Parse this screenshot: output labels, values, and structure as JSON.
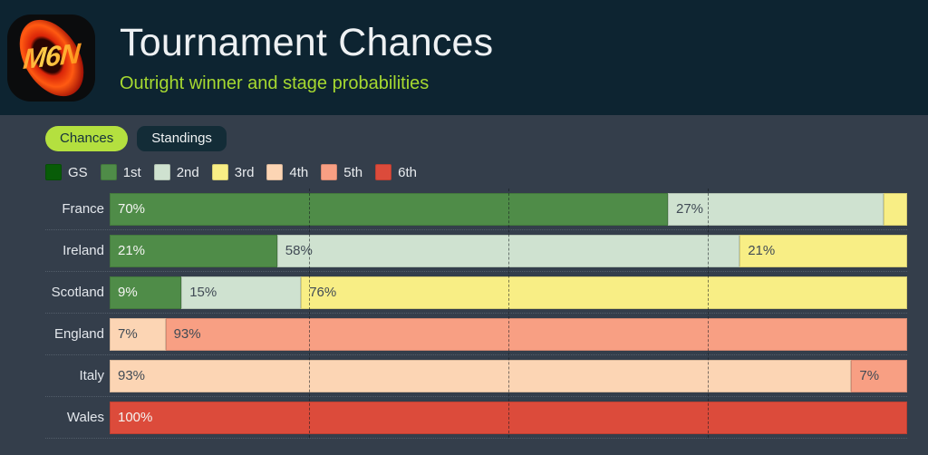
{
  "header": {
    "logo_text": "M6N",
    "title": "Tournament Chances",
    "subtitle": "Outright winner and stage probabilities"
  },
  "tabs": [
    {
      "label": "Chances",
      "active": true
    },
    {
      "label": "Standings",
      "active": false
    }
  ],
  "legend": [
    {
      "stage": "GS"
    },
    {
      "stage": "1st"
    },
    {
      "stage": "2nd"
    },
    {
      "stage": "3rd"
    },
    {
      "stage": "4th"
    },
    {
      "stage": "5th"
    },
    {
      "stage": "6th"
    }
  ],
  "colors": {
    "header_bg": "#0d2431",
    "content_bg": "#343e4b",
    "accent_green": "#a6d930",
    "tab_active_bg": "#b4e03f",
    "tab_active_text": "#15313b",
    "tab_inactive_bg": "#132c37"
  },
  "chart_data": {
    "type": "bar",
    "variant": "horizontal-stacked",
    "x_range": [
      0,
      100
    ],
    "grid_percents": [
      25,
      50,
      75
    ],
    "legend_position": "top",
    "stage_colors": {
      "GS": "#085c08",
      "1st": "#4f8c48",
      "2nd": "#cfe2d0",
      "3rd": "#f8ee85",
      "4th": "#fcd5b4",
      "5th": "#f89f83",
      "6th": "#dc4b3b"
    },
    "light_text_stages": [
      "GS",
      "1st",
      "6th"
    ],
    "categories": [
      "France",
      "Ireland",
      "Scotland",
      "England",
      "Italy",
      "Wales"
    ],
    "series": [
      {
        "name": "1st",
        "values": [
          70,
          21,
          9,
          0,
          0,
          0
        ]
      },
      {
        "name": "2nd",
        "values": [
          27,
          58,
          15,
          0,
          0,
          0
        ]
      },
      {
        "name": "3rd",
        "values": [
          3,
          21,
          76,
          0,
          0,
          0
        ]
      },
      {
        "name": "4th",
        "values": [
          0,
          0,
          0,
          7,
          93,
          0
        ]
      },
      {
        "name": "5th",
        "values": [
          0,
          0,
          0,
          93,
          7,
          0
        ]
      },
      {
        "name": "6th",
        "values": [
          0,
          0,
          0,
          0,
          0,
          100
        ]
      }
    ],
    "rows": [
      {
        "team": "France",
        "segments": [
          {
            "stage": "1st",
            "value": 70,
            "label": "70%"
          },
          {
            "stage": "2nd",
            "value": 27,
            "label": "27%"
          },
          {
            "stage": "3rd",
            "value": 3,
            "label": ""
          }
        ]
      },
      {
        "team": "Ireland",
        "segments": [
          {
            "stage": "1st",
            "value": 21,
            "label": "21%"
          },
          {
            "stage": "2nd",
            "value": 58,
            "label": "58%"
          },
          {
            "stage": "3rd",
            "value": 21,
            "label": "21%"
          }
        ]
      },
      {
        "team": "Scotland",
        "segments": [
          {
            "stage": "1st",
            "value": 9,
            "label": "9%"
          },
          {
            "stage": "2nd",
            "value": 15,
            "label": "15%"
          },
          {
            "stage": "3rd",
            "value": 76,
            "label": "76%"
          }
        ]
      },
      {
        "team": "England",
        "segments": [
          {
            "stage": "4th",
            "value": 7,
            "label": "7%"
          },
          {
            "stage": "5th",
            "value": 93,
            "label": "93%"
          }
        ]
      },
      {
        "team": "Italy",
        "segments": [
          {
            "stage": "4th",
            "value": 93,
            "label": "93%"
          },
          {
            "stage": "5th",
            "value": 7,
            "label": "7%"
          }
        ]
      },
      {
        "team": "Wales",
        "segments": [
          {
            "stage": "6th",
            "value": 100,
            "label": "100%"
          }
        ]
      }
    ]
  }
}
